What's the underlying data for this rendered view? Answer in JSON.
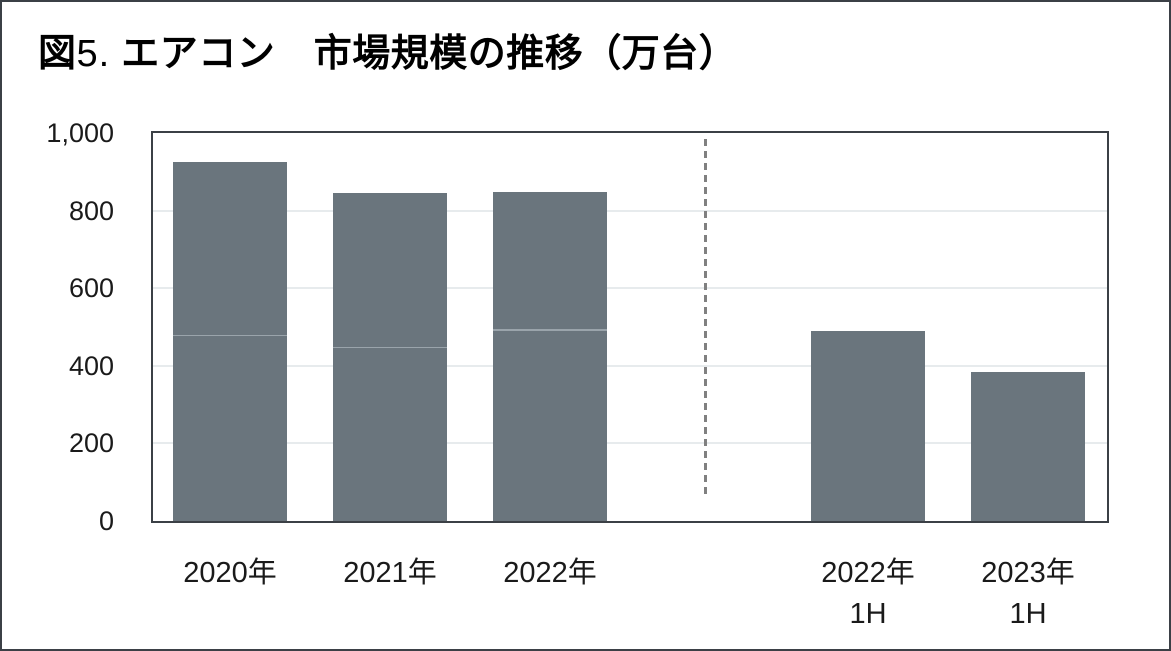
{
  "title": {
    "prefix": "図",
    "number": "5.",
    "main": "エアコン　市場規模の推移（万台）",
    "full": "図5. エアコン　市場規模の推移（万台）"
  },
  "colors": {
    "background": "#FFFFFF",
    "frame": "#3B4046",
    "bar": "#6A757D",
    "bar_divider": "#9AA4AB",
    "gridline": "#E7EBED",
    "dashed_separator": "#808080",
    "text": "#1A1A1A"
  },
  "chart_data": {
    "type": "bar",
    "title": "図5. エアコン　市場規模の推移（万台）",
    "unit": "万台",
    "xlabel": "",
    "ylabel": "",
    "ylim": [
      0,
      1000
    ],
    "grid": true,
    "legend": "none",
    "yticks": [
      {
        "value": 1000,
        "label": "1,000"
      },
      {
        "value": 800,
        "label": "800"
      },
      {
        "value": 600,
        "label": "600"
      },
      {
        "value": 400,
        "label": "400"
      },
      {
        "value": 200,
        "label": "200"
      },
      {
        "value": 0,
        "label": "0"
      }
    ],
    "bars": [
      {
        "category": "2020年",
        "sublabel": "",
        "group": 0,
        "value": 925,
        "segments": [
          476,
          449
        ]
      },
      {
        "category": "2021年",
        "sublabel": "",
        "group": 0,
        "value": 846,
        "segments": [
          445,
          401
        ]
      },
      {
        "category": "2022年",
        "sublabel": "",
        "group": 0,
        "value": 849,
        "segments": [
          490,
          359
        ]
      },
      {
        "category": "2022年",
        "sublabel": "1H",
        "group": 1,
        "value": 490,
        "segments": [
          490
        ]
      },
      {
        "category": "2023年",
        "sublabel": "1H",
        "group": 1,
        "value": 383,
        "segments": [
          383
        ]
      }
    ],
    "separator": {
      "style": "dashed-vertical-line",
      "location": "between annual bars (2020-2022) and half-year bars (2022 1H, 2023 1H)"
    }
  }
}
